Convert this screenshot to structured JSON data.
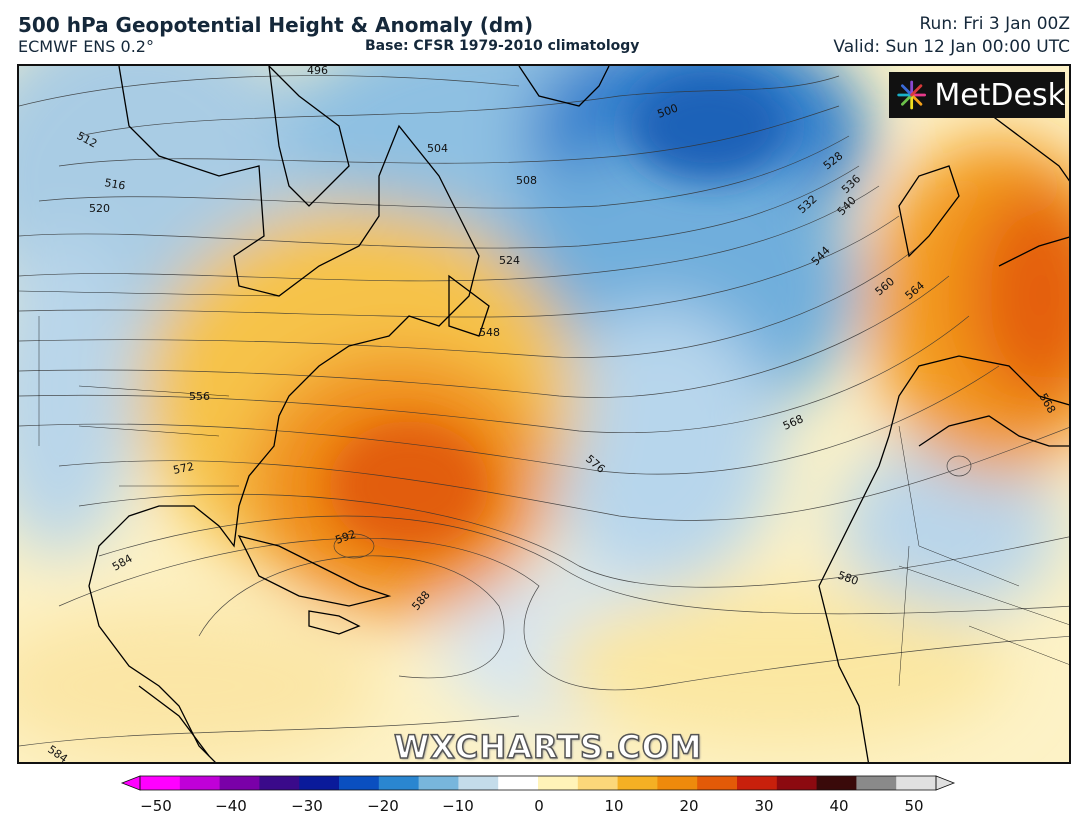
{
  "header": {
    "title": "500 hPa Geopotential Height & Anomaly (dm)",
    "model": "ECMWF ENS 0.2°",
    "base": "Base: CFSR 1979-2010 climatology",
    "run": "Run: Fri 3 Jan 00Z",
    "valid": "Valid: Sun 12 Jan 00:00 UTC"
  },
  "logo": {
    "text": "MetDesk",
    "icon": "metdesk-pinwheel-icon"
  },
  "watermark": "WXCHARTS.COM",
  "contour_labels": [
    "496",
    "500",
    "504",
    "508",
    "512",
    "516",
    "520",
    "524",
    "528",
    "532",
    "536",
    "540",
    "544",
    "548",
    "556",
    "560",
    "564",
    "568",
    "568",
    "572",
    "576",
    "580",
    "584",
    "584",
    "588",
    "592"
  ],
  "colorbar": {
    "ticks": [
      "−50",
      "−40",
      "−30",
      "−20",
      "−10",
      "0",
      "10",
      "20",
      "30",
      "40",
      "50"
    ],
    "colors": [
      "#ff00ff",
      "#c000d8",
      "#7a00a8",
      "#3a0a8a",
      "#0a1a9a",
      "#0a4fc0",
      "#2a86d0",
      "#78b6dc",
      "#c4dcea",
      "#ffffff",
      "#fff3b8",
      "#fbd77a",
      "#f4b024",
      "#ee8a0c",
      "#e35a08",
      "#c8200c",
      "#8c0a10",
      "#3a0a0a",
      "#8a8a8a",
      "#e0e0e0"
    ]
  },
  "colors": {
    "positive_anomaly": "#f08a10",
    "negative_anomaly": "#1e74c4",
    "neutral": "#fdf4cf"
  }
}
